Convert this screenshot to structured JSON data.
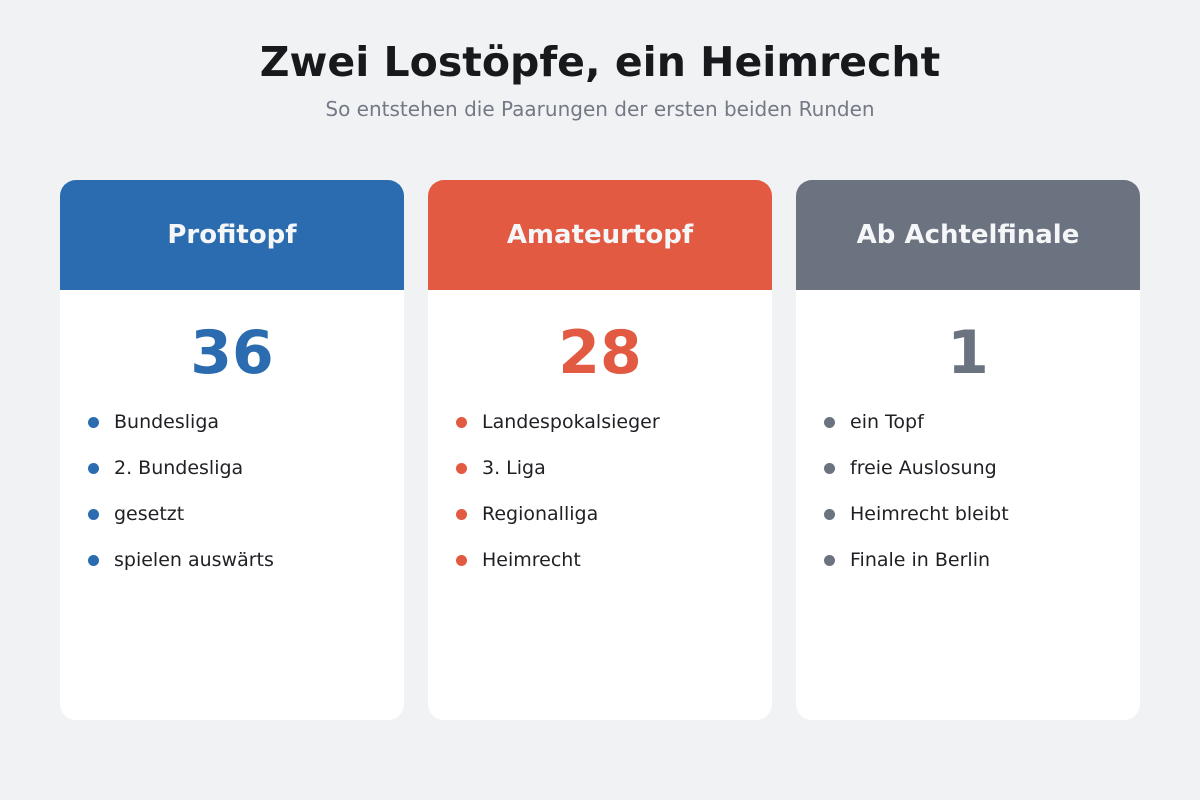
{
  "title": "Zwei Lostöpfe, ein Heimrecht",
  "subtitle": "So entstehen die Paarungen der ersten beiden Runden",
  "cards": [
    {
      "header": "Profitopf",
      "number": "36",
      "color": "#2b6cb0",
      "items": [
        "Bundesliga",
        "2. Bundesliga",
        "gesetzt",
        "spielen auswärts"
      ]
    },
    {
      "header": "Amateurtopf",
      "number": "28",
      "color": "#e25a41",
      "items": [
        "Landespokalsieger",
        "3. Liga",
        "Regionalliga",
        "Heimrecht"
      ]
    },
    {
      "header": "Ab Achtelfinale",
      "number": "1",
      "color": "#6b7280",
      "items": [
        "ein Topf",
        "freie Auslosung",
        "Heimrecht bleibt",
        "Finale in Berlin"
      ]
    }
  ]
}
